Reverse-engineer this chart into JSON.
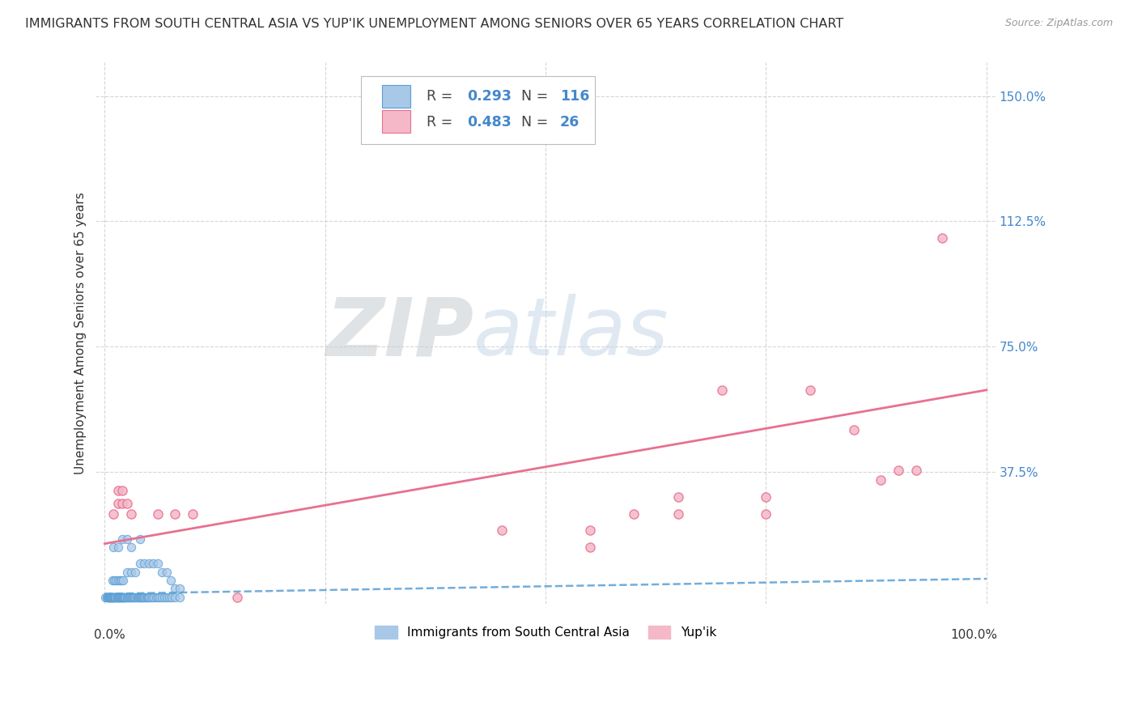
{
  "title": "IMMIGRANTS FROM SOUTH CENTRAL ASIA VS YUP'IK UNEMPLOYMENT AMONG SENIORS OVER 65 YEARS CORRELATION CHART",
  "source": "Source: ZipAtlas.com",
  "ylabel": "Unemployment Among Seniors over 65 years",
  "blue_R": 0.293,
  "blue_N": 116,
  "pink_R": 0.483,
  "pink_N": 26,
  "blue_color": "#a8c8e8",
  "blue_edge_color": "#5a9fd4",
  "pink_color": "#f4b8c8",
  "pink_edge_color": "#e87090",
  "blue_line_color": "#5a9fd4",
  "pink_line_color": "#e87090",
  "watermark_color": "#c8d8e8",
  "background_color": "#ffffff",
  "grid_color": "#cccccc",
  "legend_value_color": "#4488cc",
  "axis_label_color": "#4488cc",
  "title_color": "#333333",
  "blue_scatter_x": [
    0.001,
    0.002,
    0.003,
    0.003,
    0.004,
    0.004,
    0.005,
    0.005,
    0.005,
    0.006,
    0.006,
    0.006,
    0.007,
    0.007,
    0.008,
    0.008,
    0.008,
    0.009,
    0.009,
    0.01,
    0.01,
    0.01,
    0.011,
    0.011,
    0.012,
    0.012,
    0.013,
    0.013,
    0.014,
    0.014,
    0.015,
    0.015,
    0.015,
    0.016,
    0.016,
    0.017,
    0.017,
    0.018,
    0.018,
    0.019,
    0.02,
    0.02,
    0.02,
    0.021,
    0.021,
    0.022,
    0.022,
    0.023,
    0.023,
    0.024,
    0.025,
    0.025,
    0.026,
    0.027,
    0.028,
    0.029,
    0.03,
    0.031,
    0.032,
    0.033,
    0.034,
    0.035,
    0.036,
    0.037,
    0.038,
    0.039,
    0.04,
    0.041,
    0.042,
    0.043,
    0.044,
    0.045,
    0.046,
    0.047,
    0.048,
    0.049,
    0.05,
    0.052,
    0.054,
    0.056,
    0.058,
    0.06,
    0.062,
    0.065,
    0.068,
    0.07,
    0.073,
    0.076,
    0.08,
    0.085,
    0.009,
    0.011,
    0.013,
    0.015,
    0.017,
    0.019,
    0.021,
    0.025,
    0.03,
    0.035,
    0.04,
    0.045,
    0.05,
    0.055,
    0.06,
    0.065,
    0.07,
    0.075,
    0.08,
    0.085,
    0.01,
    0.015,
    0.02,
    0.025,
    0.03,
    0.04
  ],
  "blue_scatter_y": [
    0.0,
    0.0,
    0.0,
    0.0,
    0.0,
    0.0,
    0.0,
    0.0,
    0.0,
    0.0,
    0.0,
    0.0,
    0.0,
    0.0,
    0.0,
    0.0,
    0.0,
    0.0,
    0.0,
    0.0,
    0.0,
    0.0,
    0.0,
    0.0,
    0.0,
    0.0,
    0.0,
    0.0,
    0.0,
    0.0,
    0.0,
    0.0,
    0.0,
    0.0,
    0.0,
    0.0,
    0.0,
    0.0,
    0.0,
    0.0,
    0.0,
    0.0,
    0.0,
    0.0,
    0.0,
    0.0,
    0.0,
    0.0,
    0.0,
    0.0,
    0.0,
    0.0,
    0.0,
    0.0,
    0.0,
    0.0,
    0.0,
    0.0,
    0.0,
    0.0,
    0.0,
    0.0,
    0.0,
    0.0,
    0.0,
    0.0,
    0.0,
    0.0,
    0.0,
    0.0,
    0.0,
    0.0,
    0.0,
    0.0,
    0.0,
    0.0,
    0.0,
    0.0,
    0.0,
    0.0,
    0.0,
    0.0,
    0.0,
    0.0,
    0.0,
    0.0,
    0.0,
    0.0,
    0.0,
    0.0,
    0.05,
    0.05,
    0.05,
    0.05,
    0.05,
    0.05,
    0.05,
    0.075,
    0.075,
    0.075,
    0.1,
    0.1,
    0.1,
    0.1,
    0.1,
    0.075,
    0.075,
    0.05,
    0.025,
    0.025,
    0.15,
    0.15,
    0.175,
    0.175,
    0.15,
    0.175
  ],
  "pink_scatter_x": [
    0.01,
    0.015,
    0.015,
    0.02,
    0.02,
    0.025,
    0.03,
    0.06,
    0.08,
    0.1,
    0.15,
    0.45,
    0.55,
    0.55,
    0.6,
    0.65,
    0.65,
    0.7,
    0.75,
    0.75,
    0.8,
    0.85,
    0.88,
    0.9,
    0.92,
    0.95
  ],
  "pink_scatter_y": [
    0.25,
    0.32,
    0.28,
    0.32,
    0.28,
    0.28,
    0.25,
    0.25,
    0.25,
    0.25,
    0.0,
    0.2,
    0.2,
    0.15,
    0.25,
    0.3,
    0.25,
    0.62,
    0.3,
    0.25,
    0.62,
    0.5,
    0.35,
    0.38,
    0.38,
    1.075
  ],
  "pink_line_x0": 0.0,
  "pink_line_y0": 0.16,
  "pink_line_x1": 1.0,
  "pink_line_y1": 0.62,
  "blue_line_x0": 0.0,
  "blue_line_y0": 0.01,
  "blue_line_x1": 1.0,
  "blue_line_y1": 0.055,
  "xlim": [
    0.0,
    1.0
  ],
  "ylim": [
    0.0,
    1.6
  ],
  "ytick_positions": [
    0.375,
    0.75,
    1.125,
    1.5
  ],
  "ytick_labels": [
    "37.5%",
    "75.0%",
    "112.5%",
    "150.0%"
  ]
}
